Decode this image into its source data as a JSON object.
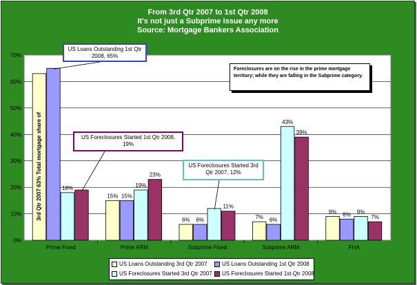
{
  "header": {
    "line1": "From 3rd Qtr 2007 to 1st Qtr 2008",
    "line2": "It's not just a Subprime Issue any more",
    "line3": "Source: Mortgage Bankers Association"
  },
  "colors": {
    "background": "#2e8b22",
    "plot": "#ffffff",
    "series": [
      "#ffffcc",
      "#9999ff",
      "#ccffff",
      "#993366"
    ]
  },
  "chart_data": {
    "type": "bar",
    "categories": [
      "Prime Fixed",
      "Prime ARM",
      "Subprime Fixed",
      "Subprime ARM",
      "FHA"
    ],
    "series": [
      {
        "name": "US Loans Outstanding 3rd Qtr 2007",
        "values": [
          63,
          15,
          6,
          7,
          9
        ],
        "labels": [
          "3rd Qtr 2007 63% Total mortgage share of",
          "15%",
          "6%",
          "7%",
          "9%"
        ]
      },
      {
        "name": "US Loans Outstanding 1st Qtr 2008",
        "values": [
          65,
          15,
          6,
          6,
          8
        ],
        "labels": [
          "",
          "15%",
          "6%",
          "6%",
          "8%"
        ]
      },
      {
        "name": "US Foreclosures Started 3rd Qtr 2007",
        "values": [
          18,
          19,
          12,
          43,
          9
        ],
        "labels": [
          "18%",
          "19%",
          "",
          "43%",
          "9%"
        ]
      },
      {
        "name": "US Foreclosures Started 1st Qtr 2008",
        "values": [
          19,
          23,
          11,
          39,
          7
        ],
        "labels": [
          "",
          "23%",
          "11%",
          "39%",
          "7%"
        ]
      }
    ],
    "yticks": [
      "0%",
      "10%",
      "20%",
      "30%",
      "40%",
      "50%",
      "60%",
      "70%"
    ],
    "ylim": [
      0,
      70
    ],
    "grid": true,
    "legend_position": "bottom"
  },
  "callouts": [
    {
      "text": "US Loans Outstanding 1st Qtr 2008, 65%",
      "border": "#4040c0"
    },
    {
      "text": "US Foreclosures Started 1st Qtr 2008, 19%",
      "border": "#800060"
    },
    {
      "text": "US Foreclosures Started 3rd Qtr 2007, 12%",
      "border": "#60c0c0"
    }
  ],
  "note": "Foreclosures are on the rise in the prime mortgage territory; while they are falling in the Subprime category."
}
